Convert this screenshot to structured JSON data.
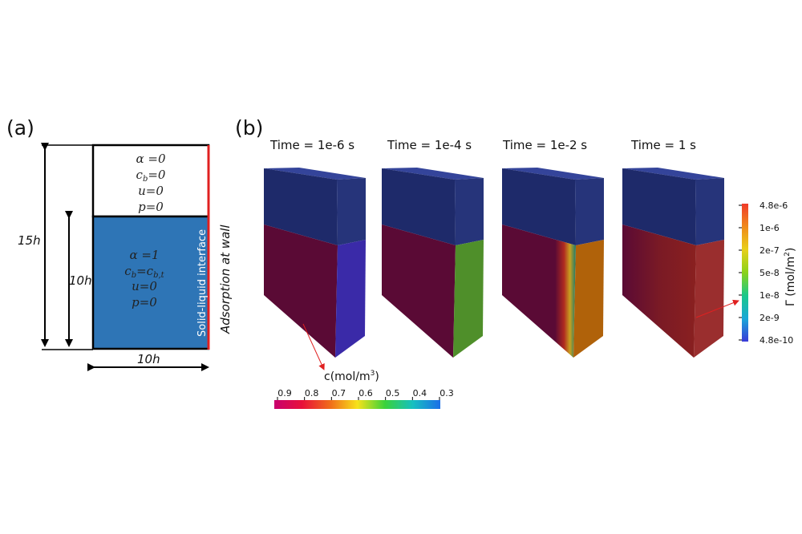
{
  "panel_a": {
    "label": "(a)",
    "top_region": {
      "alpha": "α =0",
      "cb_base": "c",
      "cb_sub": "b",
      "cb_rest": "=0",
      "u": "u=0",
      "p": "p=0"
    },
    "bottom_region": {
      "alpha": "α =1",
      "cb_base": "c",
      "cb_sub": "b",
      "cb_mid": "=c",
      "cb_sub2": "b,t",
      "u": "u=0",
      "p": "p=0"
    },
    "dim_total_height": "15h",
    "dim_liquid_height": "10h",
    "dim_width": "10h",
    "interface_label": "Solid-liquid interface",
    "wall_label": "Adsorption at wall",
    "colors": {
      "liquid": "#2e75b6",
      "wall": "#e02020",
      "outline": "#000000"
    }
  },
  "panel_b": {
    "label": "(b)",
    "snapshots": [
      {
        "time": "Time = 1e-6 s",
        "side_color": "#3a2aa8",
        "front_base": "#5a0a35"
      },
      {
        "time": "Time = 1e-4 s",
        "side_color": "#4f8f2a",
        "front_base": "#5a0a35"
      },
      {
        "time": "Time = 1e-2 s",
        "side_color": "#b0620a",
        "front_base": "#5a0a35"
      },
      {
        "time": "Time = 1 s",
        "side_color": "#9a2e2e",
        "front_base": "#5a0a35"
      }
    ],
    "gas_colors": {
      "top": "#2a3a8a",
      "front": "#1e2a6a",
      "side": "#26347a"
    },
    "c_colorbar": {
      "title": "c(mol/m",
      "title_sup": "3",
      "title_end": ")",
      "ticks": [
        "0.9",
        "0.8",
        "0.7",
        "0.6",
        "0.5",
        "0.4",
        "0.3"
      ],
      "gradient": [
        "#c8006e",
        "#e8103a",
        "#f06a1a",
        "#f7e21a",
        "#3ad23a",
        "#16c0c0",
        "#1a6ee8"
      ]
    },
    "gamma_colorbar": {
      "title": "Γ (mol/m",
      "title_sup": "2",
      "title_end": ")",
      "ticks": [
        "4.8e-6",
        "1e-6",
        "2e-7",
        "5e-8",
        "1e-8",
        "2e-9",
        "4.8e-10"
      ],
      "gradient": [
        "#f03a2a",
        "#f08a1a",
        "#e8d01a",
        "#8ad21a",
        "#1ac88a",
        "#1aa8d8",
        "#3a3ad8"
      ]
    }
  }
}
